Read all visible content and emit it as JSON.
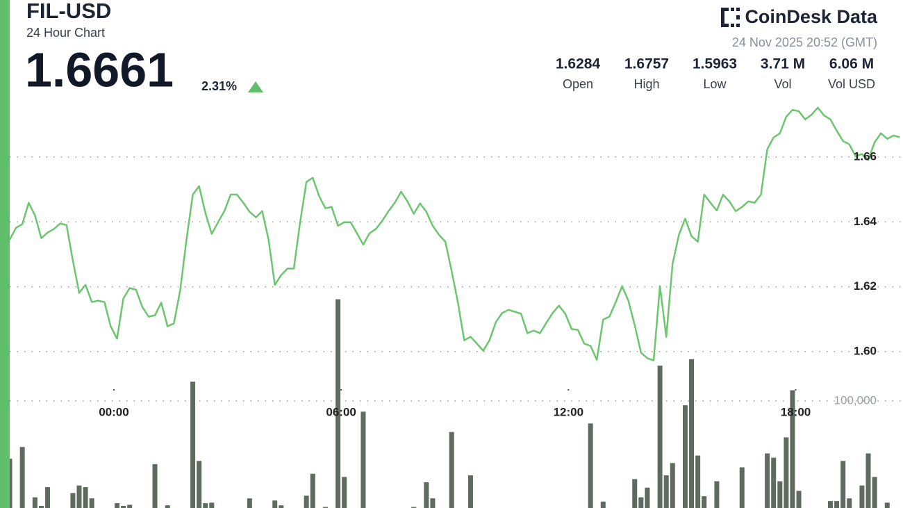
{
  "header": {
    "price": "1.6661",
    "change": "2.31%",
    "brand": "CoinDesk Data",
    "timestamp": "24 Nov 2025 20:52 (GMT)",
    "stats": [
      {
        "value": "1.6284",
        "label": "Open"
      },
      {
        "value": "1.6757",
        "label": "High"
      },
      {
        "value": "1.5963",
        "label": "Low"
      },
      {
        "value": "3.71 M",
        "label": "Vol"
      },
      {
        "value": "6.06 M",
        "label": "Vol USD"
      }
    ]
  },
  "chart_data": {
    "type": "line",
    "title": "FIL-USD",
    "subtitle": "24 Hour Chart",
    "xlim": [
      -165,
      1250
    ],
    "xticks": [
      {
        "value": 0,
        "label": "00:00"
      },
      {
        "value": 360,
        "label": "06:00"
      },
      {
        "value": 720,
        "label": "12:00"
      },
      {
        "value": 1080,
        "label": "18:00"
      }
    ],
    "ylim": [
      1.59,
      1.68
    ],
    "yticks": [
      {
        "value": 1.6,
        "label": "1.60"
      },
      1.62,
      1.64,
      1.66
    ],
    "y2lim": [
      0,
      200000
    ],
    "y2ticks": [
      {
        "value": 100000,
        "label": "100,000"
      }
    ],
    "grid": true,
    "series": [
      {
        "color": "#6cc56f",
        "x": [
          -165,
          -155,
          -145,
          -135,
          -125,
          -115,
          -105,
          -95,
          -85,
          -75,
          -65,
          -55,
          -45,
          -35,
          -25,
          -15,
          -5,
          5,
          15,
          25,
          35,
          45,
          55,
          65,
          75,
          85,
          95,
          105,
          115,
          125,
          135,
          145,
          155,
          165,
          175,
          185,
          195,
          205,
          215,
          225,
          235,
          245,
          255,
          265,
          275,
          285,
          295,
          305,
          315,
          325,
          335,
          345,
          355,
          365,
          375,
          385,
          395,
          405,
          415,
          425,
          435,
          445,
          455,
          465,
          475,
          485,
          495,
          505,
          515,
          525,
          535,
          545,
          555,
          565,
          575,
          585,
          595,
          605,
          615,
          625,
          635,
          645,
          655,
          665,
          675,
          685,
          695,
          705,
          715,
          725,
          735,
          745,
          755,
          765,
          775,
          785,
          795,
          805,
          815,
          825,
          835,
          845,
          855,
          865,
          875,
          885,
          895,
          905,
          915,
          925,
          935,
          945,
          955,
          965,
          975,
          985,
          995,
          1005,
          1015,
          1025,
          1035,
          1045,
          1055,
          1065,
          1075,
          1085,
          1095,
          1105,
          1115,
          1125,
          1135,
          1145,
          1155,
          1165,
          1175,
          1185,
          1195,
          1205,
          1215,
          1225,
          1235,
          1245
        ],
        "values": [
          1.6345,
          1.6382,
          1.6393,
          1.6459,
          1.642,
          1.635,
          1.6367,
          1.6378,
          1.6395,
          1.639,
          1.6281,
          1.6181,
          1.6206,
          1.6153,
          1.6157,
          1.6153,
          1.6078,
          1.604,
          1.6164,
          1.6196,
          1.6191,
          1.6138,
          1.6108,
          1.6112,
          1.6151,
          1.6078,
          1.6087,
          1.6189,
          1.6345,
          1.6484,
          1.651,
          1.6427,
          1.6363,
          1.6399,
          1.6433,
          1.6484,
          1.6484,
          1.6459,
          1.6431,
          1.6414,
          1.6433,
          1.6345,
          1.6206,
          1.6236,
          1.6256,
          1.6256,
          1.6399,
          1.6523,
          1.6536,
          1.648,
          1.6442,
          1.6446,
          1.6388,
          1.6399,
          1.6399,
          1.6365,
          1.633,
          1.6365,
          1.6378,
          1.6403,
          1.6433,
          1.6459,
          1.6493,
          1.6463,
          1.6425,
          1.6457,
          1.6431,
          1.6388,
          1.636,
          1.6339,
          1.6249,
          1.6151,
          1.6035,
          1.6046,
          1.6025,
          1.6003,
          1.6035,
          1.6091,
          1.6119,
          1.6129,
          1.6123,
          1.6117,
          1.6057,
          1.6065,
          1.6057,
          1.6089,
          1.6119,
          1.6142,
          1.6117,
          1.607,
          1.6067,
          1.6025,
          1.6018,
          1.5975,
          1.6099,
          1.6108,
          1.6153,
          1.6202,
          1.6157,
          1.6082,
          1.5997,
          1.598,
          1.5973,
          1.6202,
          1.6046,
          1.6271,
          1.636,
          1.641,
          1.6356,
          1.6339,
          1.6484,
          1.6459,
          1.6435,
          1.6484,
          1.6463,
          1.6433,
          1.6446,
          1.6463,
          1.6459,
          1.6484,
          1.6624,
          1.666,
          1.6673,
          1.6724,
          1.6745,
          1.6741,
          1.6716,
          1.673,
          1.6752,
          1.6728,
          1.6716,
          1.6681,
          1.6649,
          1.6639,
          1.6602,
          1.6609,
          1.6591,
          1.6645,
          1.6673,
          1.6656,
          1.6666,
          1.6661
        ]
      },
      {
        "type": "bar",
        "axis": "y2",
        "color": "#5e6b5e",
        "x": [
          -165,
          -145,
          -125,
          -115,
          -105,
          -65,
          -55,
          -45,
          -35,
          5,
          15,
          25,
          65,
          85,
          125,
          135,
          145,
          155,
          215,
          255,
          265,
          305,
          315,
          335,
          355,
          365,
          395,
          475,
          495,
          505,
          535,
          565,
          755,
          775,
          825,
          835,
          845,
          865,
          875,
          885,
          905,
          915,
          925,
          935,
          955,
          995,
          1035,
          1045,
          1055,
          1065,
          1075,
          1085,
          1135,
          1145,
          1155,
          1165,
          1185,
          1195,
          1205,
          1225
        ],
        "values": [
          46000,
          57000,
          10000,
          2000,
          19500,
          14000,
          21000,
          19500,
          9000,
          4500,
          2000,
          3000,
          41000,
          2500,
          118000,
          44000,
          4500,
          5000,
          9000,
          7000,
          2500,
          11500,
          32000,
          1000,
          195000,
          29000,
          90000,
          1000,
          24000,
          9000,
          71000,
          30500,
          79000,
          6000,
          27000,
          10000,
          19000,
          133000,
          30500,
          42000,
          96000,
          139000,
          49000,
          11000,
          25000,
          38000,
          51000,
          47000,
          25000,
          66000,
          110000,
          16000,
          6500,
          6500,
          44000,
          9000,
          21000,
          51000,
          29000,
          5000
        ]
      }
    ]
  }
}
